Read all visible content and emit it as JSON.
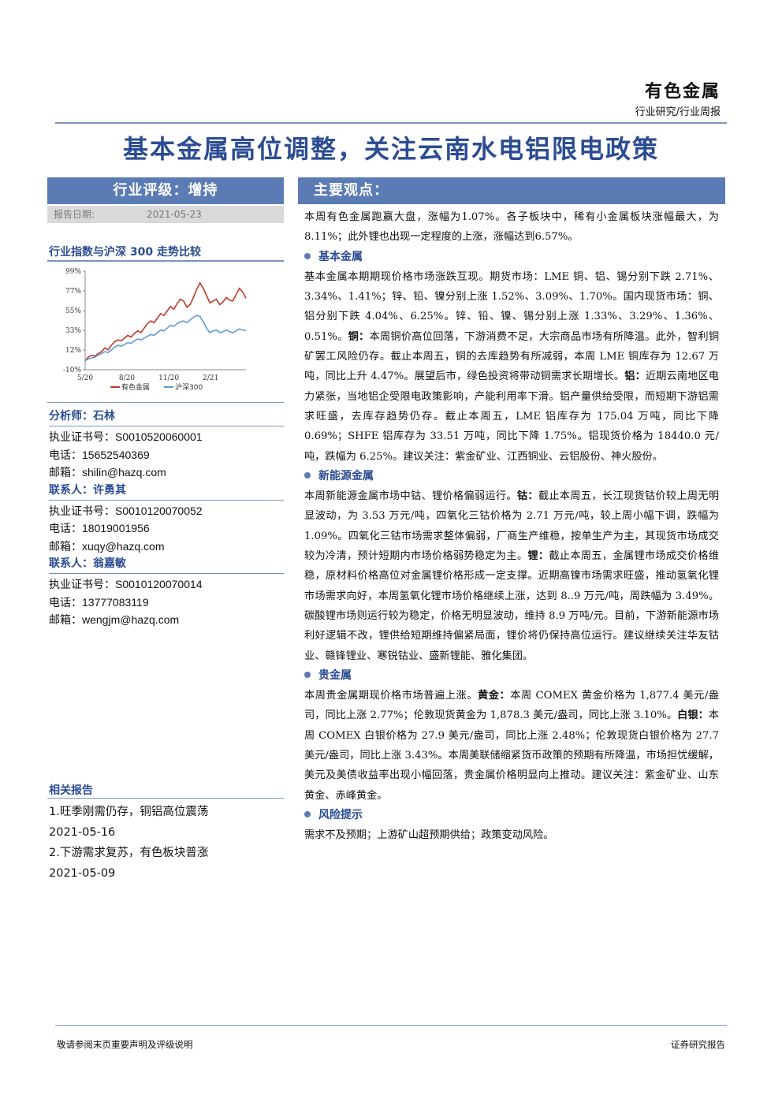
{
  "header": {
    "industry": "有色金属",
    "report_type": "行业研究/行业周报",
    "title": "基本金属高位调整，关注云南水电铝限电政策"
  },
  "sidebar": {
    "rating": "行业评级：增持",
    "date_label": "报告日期:",
    "date_value": "2021-05-23",
    "chart_title": "行业指数与沪深 300 走势比较",
    "contacts": [
      {
        "role": "分析师：石林",
        "lines": [
          "执业证书号：S0010520060001",
          "电话：15652540369",
          "邮箱：shilin@hazq.com"
        ]
      },
      {
        "role": "联系人：许勇其",
        "lines": [
          "执业证书号：S0010120070052",
          "电话：18019001956",
          "邮箱：xuqy@hazq.com"
        ]
      },
      {
        "role": "联系人：翁嘉敏",
        "lines": [
          "执业证书号：S0010120070014",
          "电话：13777083119",
          "邮箱：wengjm@hazq.com"
        ]
      }
    ],
    "related_title": "相关报告",
    "related": [
      "1.旺季刚需仍存，铜铝高位震荡",
      "2021-05-16",
      "2.下游需求复苏，有色板块普涨",
      "2021-05-09"
    ]
  },
  "chart_data": {
    "type": "line",
    "title": "行业指数与沪深 300 走势比较",
    "y_ticks": [
      "99%",
      "77%",
      "55%",
      "33%",
      "12%",
      "-10%"
    ],
    "ylim": [
      -10,
      99
    ],
    "x_ticks": [
      "5/20",
      "8/20",
      "11/20",
      "2/21"
    ],
    "series": [
      {
        "name": "有色金属",
        "color": "#c0392b",
        "values": [
          0,
          4,
          6,
          5,
          8,
          10,
          14,
          12,
          17,
          21,
          23,
          22,
          25,
          28,
          26,
          30,
          33,
          31,
          36,
          41,
          44,
          42,
          47,
          52,
          50,
          55,
          60,
          57,
          63,
          68,
          66,
          59,
          62,
          70,
          79,
          86,
          80,
          72,
          64,
          66,
          68,
          62,
          65,
          70,
          67,
          66,
          73,
          80,
          76,
          69
        ]
      },
      {
        "name": "沪深300",
        "color": "#5b9bd5",
        "values": [
          0,
          2,
          3,
          4,
          6,
          8,
          10,
          9,
          12,
          15,
          17,
          16,
          18,
          20,
          19,
          22,
          24,
          23,
          25,
          27,
          29,
          28,
          31,
          34,
          33,
          36,
          39,
          38,
          41,
          43,
          44,
          42,
          45,
          48,
          50,
          49,
          43,
          36,
          31,
          33,
          34,
          31,
          32,
          34,
          32,
          31,
          33,
          35,
          34,
          33
        ]
      }
    ],
    "legend_position": "bottom",
    "grid": false
  },
  "main": {
    "view_title": "主要观点：",
    "intro": "本周有色金属跑赢大盘，涨幅为1.07%。各子板块中，稀有小金属板块涨幅最大，为8.11%；此外锂也出现一定程度的上涨，涨幅达到6.57%。",
    "sections": [
      {
        "heading": "基本金属",
        "paragraphs": [
          [
            {
              "t": "基本金属本期期现价格市场涨跌互现。期货市场：LME 铜、铝、锡分别下跌 2.71%、3.34%、1.41%；锌、铅、镍分别上涨 1.52%、3.09%、1.70%。国内现货市场：铜、铝分别下跌 4.04%、6.25%。锌、铅、镍、锡分别上涨 1.33%、3.29%、1.36%、0.51%。"
            },
            {
              "t": "铜：",
              "b": true
            },
            {
              "t": "本周铜价高位回落，下游消费不足，大宗商品市场有所降温。此外，智利铜矿罢工风险仍存。截止本周五，铜的去库趋势有所减弱，本周 LME 铜库存为 12.67 万吨，同比上升 4.47%。展望后市，绿色投资将带动铜需求长期增长。"
            },
            {
              "t": "铝：",
              "b": true
            },
            {
              "t": "近期云南地区电力紧张，当地铝企受限电政策影响，产能利用率下滑。铝产量供给受限，而短期下游铝需求旺盛，去库存趋势仍存。截止本周五，LME 铝库存为 175.04 万吨，同比下降 0.69%；SHFE 铝库存为 33.51 万吨，同比下降 1.75%。铝现货价格为 18440.0 元/吨，跌幅为 6.25%。建议关注：紫金矿业、江西铜业、云铝股份、神火股份。"
            }
          ]
        ]
      },
      {
        "heading": "新能源金属",
        "paragraphs": [
          [
            {
              "t": "本周新能源金属市场中钴、锂价格偏弱运行。"
            },
            {
              "t": "钴：",
              "b": true
            },
            {
              "t": "截止本周五，长江现货钴价较上周无明显波动，为 3.53 万元/吨，四氧化三钴价格为 2.71 万元/吨，较上周小幅下调，跌幅为 1.09%。四氧化三钴市场需求整体偏弱，厂商生产维稳，按单生产为主，其现货市场成交较为冷清，预计短期内市场价格弱势稳定为主。"
            },
            {
              "t": "锂：",
              "b": true
            },
            {
              "t": "截止本周五，金属锂市场成交价格维稳，原材料价格高位对金属锂价格形成一定支撑。近期高镍市场需求旺盛，推动氢氧化锂市场需求向好，本周氢氧化锂市场价格继续上涨，达到 8..9 万元/吨，周跌幅为 3.49%。碳酸锂市场则运行较为稳定，价格无明显波动，维持 8.9 万吨/元。目前，下游新能源市场利好逻辑不改，锂供给短期维持偏紧局面，锂价将仍保持高位运行。建议继续关注华友钴业、赣锋锂业、寒锐钴业、盛新锂能、雅化集团。"
            }
          ]
        ]
      },
      {
        "heading": "贵金属",
        "paragraphs": [
          [
            {
              "t": "本周贵金属期现价格市场普遍上涨。"
            },
            {
              "t": "黄金：",
              "b": true
            },
            {
              "t": "本周 COMEX 黄金价格为 1,877.4 美元/盎司，同比上涨 2.77%；伦敦现货黄金为 1,878.3 美元/盎司，同比上涨 3.10%。"
            },
            {
              "t": "白银：",
              "b": true
            },
            {
              "t": "本周 COMEX 白银价格为 27.9 美元/盎司，同比上涨 2.48%；伦敦现货白银价格为 27.7 美元/盎司，同比上涨 3.43%。本周美联储缩紧货币政策的预期有所降温，市场担忧缓解，美元及美债收益率出现小幅回落，贵金属价格明显向上推动。建议关注：紫金矿业、山东黄金、赤峰黄金。"
            }
          ]
        ]
      },
      {
        "heading": "风险提示",
        "paragraphs": [
          [
            {
              "t": "需求不及预期；上游矿山超预期供给；政策变动风险。"
            }
          ]
        ]
      }
    ]
  },
  "footer": {
    "left": "敬请参阅末页重要声明及评级说明",
    "right": "证券研究报告"
  }
}
